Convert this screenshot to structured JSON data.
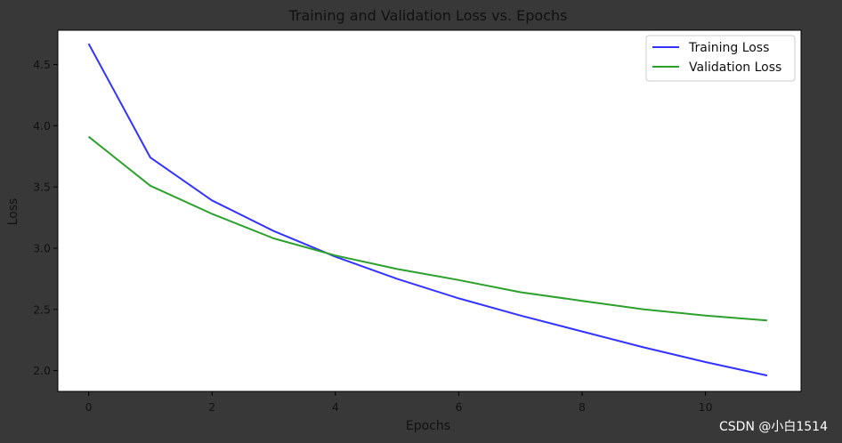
{
  "chart_data": {
    "type": "line",
    "title": "Training and Validation Loss vs. Epochs",
    "xlabel": "Epochs",
    "ylabel": "Loss",
    "x": [
      0,
      1,
      2,
      3,
      4,
      5,
      6,
      7,
      8,
      9,
      10,
      11
    ],
    "xlim": [
      -0.5,
      11.55
    ],
    "ylim": [
      1.83,
      4.78
    ],
    "xticks": [
      0,
      2,
      4,
      6,
      8,
      10
    ],
    "xtick_labels": [
      "0",
      "2",
      "4",
      "6",
      "8",
      "10"
    ],
    "yticks": [
      2.0,
      2.5,
      3.0,
      3.5,
      4.0,
      4.5
    ],
    "ytick_labels": [
      "2.0",
      "2.5",
      "3.0",
      "3.5",
      "4.0",
      "4.5"
    ],
    "grid": false,
    "legend_position": "top-right",
    "series": [
      {
        "name": "Training Loss",
        "color": "#3333ff",
        "values": [
          4.67,
          3.74,
          3.39,
          3.14,
          2.93,
          2.75,
          2.59,
          2.45,
          2.32,
          2.19,
          2.07,
          1.96
        ]
      },
      {
        "name": "Validation Loss",
        "color": "#2ca02c",
        "values": [
          3.91,
          3.51,
          3.28,
          3.08,
          2.94,
          2.83,
          2.74,
          2.64,
          2.57,
          2.5,
          2.45,
          2.41
        ]
      }
    ]
  },
  "watermark": "CSDN @小白1514"
}
